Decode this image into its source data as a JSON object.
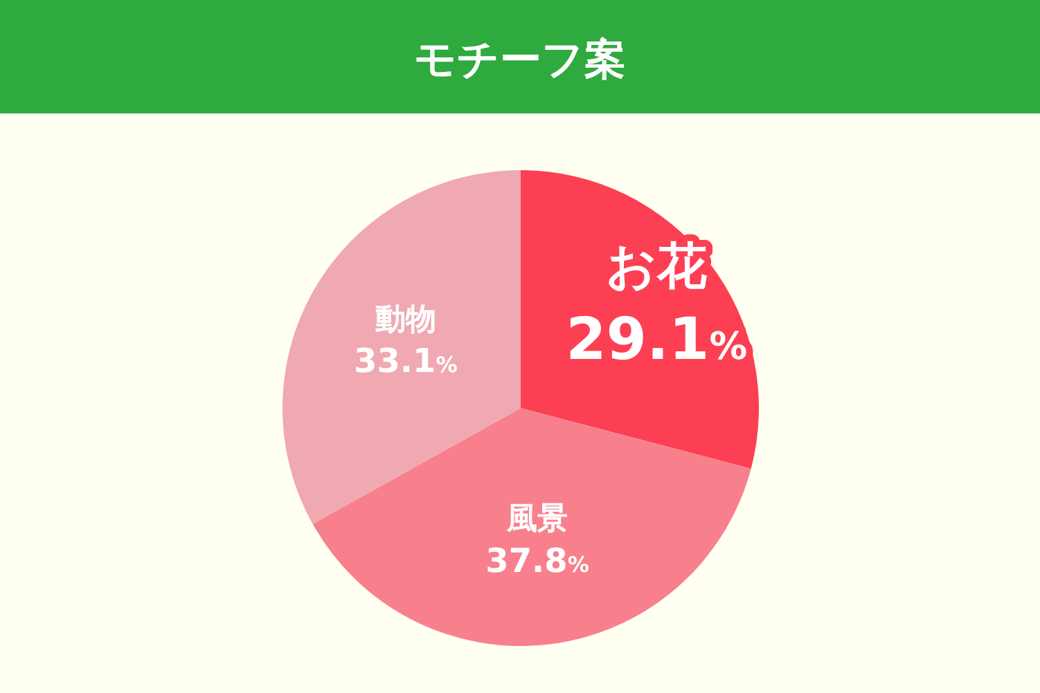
{
  "chart_data": {
    "type": "pie",
    "title": "モチーフ案",
    "categories": [
      "お花",
      "風景",
      "動物"
    ],
    "values": [
      29.1,
      37.8,
      33.1
    ],
    "value_labels": [
      "29.1%",
      "37.8%",
      "33.1%"
    ],
    "colors": [
      "#fc3f52",
      "#f8808c",
      "#f0a8b2"
    ],
    "legend": false
  }
}
